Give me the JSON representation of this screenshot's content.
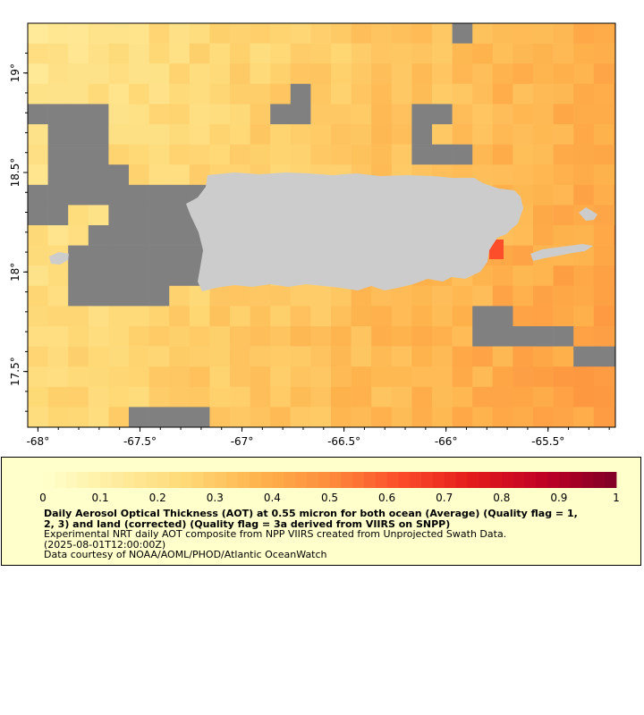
{
  "map": {
    "lon_ticks": [
      "-68°",
      "-67.5°",
      "-67°",
      "-66.5°",
      "-66°",
      "-65.5°"
    ],
    "lat_ticks": [
      "19°",
      "18.5°",
      "18°",
      "17.5°"
    ],
    "extent": {
      "lon_min": -68.05,
      "lon_max": -65.17,
      "lat_min": 17.22,
      "lat_max": 19.25
    },
    "colors": {
      "no_data": "#808080",
      "land": "#cccccc",
      "background": "#ffffff",
      "legend_background": "#ffffcc"
    }
  },
  "legend": {
    "colorbar_ticks": [
      "0",
      "0.1",
      "0.2",
      "0.3",
      "0.4",
      "0.5",
      "0.6",
      "0.7",
      "0.8",
      "0.9",
      "1"
    ],
    "colorbar_min": 0,
    "colorbar_max": 1,
    "colormap": "YlOrRd",
    "title": "Daily Aerosol Optical Thickness (AOT) at 0.55 micron for both ocean (Average) (Quality flag = 1,",
    "title_line2": "2, 3) and land (corrected) (Quality flag = 3a derived from VIIRS on SNPP)",
    "description": "Experimental NRT daily AOT composite from NPP VIIRS created from Unprojected Swath Data.",
    "time": "(2025-08-01T12:00:00Z)",
    "credit": "Data courtesy of NOAA/AOML/PHOD/Atlantic OceanWatch"
  }
}
